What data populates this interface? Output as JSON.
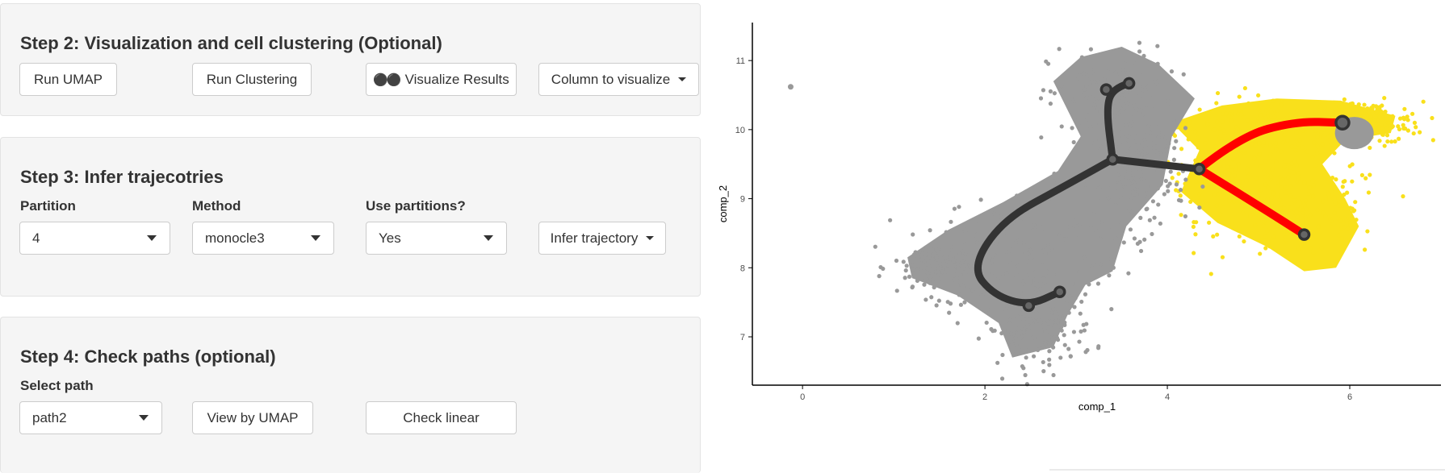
{
  "step2": {
    "title": "Step 2: Visualization and cell clustering (Optional)",
    "run_umap": "Run UMAP",
    "run_clustering": "Run Clustering",
    "visualize_results": "Visualize Results",
    "visualize_icon": "sunglasses-icon",
    "column_to_visualize": "Column to visualize"
  },
  "step3": {
    "title": "Step 3: Infer trajecotries",
    "partition": {
      "label": "Partition",
      "value": "4"
    },
    "method": {
      "label": "Method",
      "value": "monocle3"
    },
    "use_partitions": {
      "label": "Use partitions?",
      "value": "Yes"
    },
    "infer_trajectory": "Infer trajectory"
  },
  "step4": {
    "title": "Step 4: Check paths (optional)",
    "select_path": {
      "label": "Select path",
      "value": "path2"
    },
    "view_by_umap": "View by UMAP",
    "check_linear": "Check linear"
  },
  "chart_data": {
    "type": "scatter",
    "title": "",
    "xlabel": "comp_1",
    "ylabel": "comp_2",
    "xlim": [
      -0.55,
      7.0
    ],
    "ylim": [
      6.3,
      11.55
    ],
    "xticks": [
      0,
      2,
      4,
      6
    ],
    "yticks": [
      7,
      8,
      9,
      10,
      11
    ],
    "grid": false,
    "colors": {
      "background_cells": "#999999",
      "highlighted_cells": "#f9e01b",
      "trajectory": "#333333",
      "selected_path": "#ff0000"
    },
    "trajectory": {
      "nodes": [
        {
          "id": "root",
          "x": 3.4,
          "y": 9.57
        },
        {
          "id": "top",
          "x": 3.33,
          "y": 10.58
        },
        {
          "id": "top-end",
          "x": 3.58,
          "y": 10.67
        },
        {
          "id": "mid",
          "x": 4.35,
          "y": 9.43
        },
        {
          "id": "far",
          "x": 5.92,
          "y": 10.1
        },
        {
          "id": "down",
          "x": 5.5,
          "y": 8.48
        },
        {
          "id": "low-a",
          "x": 2.48,
          "y": 7.45
        },
        {
          "id": "low-b",
          "x": 2.82,
          "y": 7.65
        }
      ],
      "gray_branches": [
        [
          [
            3.58,
            10.67
          ],
          [
            3.4,
            10.6
          ],
          [
            3.33,
            10.3
          ],
          [
            3.4,
            9.57
          ]
        ],
        [
          [
            3.4,
            9.57
          ],
          [
            4.35,
            9.43
          ]
        ],
        [
          [
            3.4,
            9.57
          ],
          [
            2.9,
            9.2
          ],
          [
            2.2,
            8.7
          ],
          [
            1.85,
            8.0
          ],
          [
            2.1,
            7.6
          ],
          [
            2.48,
            7.45
          ],
          [
            2.82,
            7.65
          ]
        ]
      ],
      "selected_path": [
        [
          [
            4.35,
            9.43
          ],
          [
            4.8,
            9.9
          ],
          [
            5.4,
            10.12
          ],
          [
            5.92,
            10.1
          ]
        ],
        [
          [
            4.35,
            9.43
          ],
          [
            5.0,
            8.9
          ],
          [
            5.5,
            8.48
          ]
        ]
      ]
    },
    "outlier": {
      "x": -0.13,
      "y": 10.62
    }
  }
}
